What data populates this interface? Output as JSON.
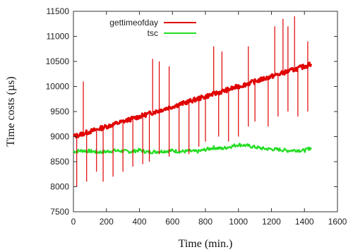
{
  "chart_data": {
    "type": "line",
    "xlabel": "Time (min.)",
    "ylabel": "Time costs (µs)",
    "xlim": [
      0,
      1600
    ],
    "ylim": [
      7500,
      11500
    ],
    "x_ticks": [
      0,
      200,
      400,
      600,
      800,
      1000,
      1200,
      1400,
      1600
    ],
    "y_ticks": [
      7500,
      8000,
      8500,
      9000,
      9500,
      10000,
      10500,
      11000,
      11500
    ],
    "x_tick_labels": [
      "0",
      "200",
      "400",
      "600",
      "800",
      "1000",
      "1200",
      "1400",
      "1600"
    ],
    "y_tick_labels": [
      "7500",
      "8000",
      "8500",
      "9000",
      "9500",
      "10000",
      "10500",
      "11000",
      "11500"
    ],
    "legend_position": "top-right",
    "series": [
      {
        "name": "gettimeofday",
        "color": "#e00000",
        "x": [
          0,
          50,
          100,
          150,
          200,
          250,
          300,
          350,
          400,
          450,
          500,
          550,
          600,
          650,
          700,
          750,
          800,
          850,
          900,
          950,
          1000,
          1050,
          1100,
          1150,
          1200,
          1250,
          1300,
          1350,
          1400,
          1440
        ],
        "values": [
          9000,
          9050,
          9100,
          9150,
          9200,
          9250,
          9300,
          9350,
          9400,
          9450,
          9500,
          9550,
          9600,
          9650,
          9700,
          9750,
          9800,
          9850,
          9900,
          9950,
          10000,
          10050,
          10100,
          10150,
          10200,
          10250,
          10300,
          10350,
          10400,
          10450
        ],
        "spikes_high": [
          [
            60,
            10100
          ],
          [
            480,
            10550
          ],
          [
            520,
            10500
          ],
          [
            580,
            10400
          ],
          [
            850,
            10800
          ],
          [
            900,
            10700
          ],
          [
            1060,
            10800
          ],
          [
            1220,
            11200
          ],
          [
            1270,
            11350
          ],
          [
            1300,
            11200
          ],
          [
            1340,
            11400
          ],
          [
            1420,
            10900
          ]
        ],
        "spikes_low": [
          [
            20,
            8000
          ],
          [
            80,
            8100
          ],
          [
            140,
            8300
          ],
          [
            180,
            8100
          ],
          [
            240,
            8200
          ],
          [
            300,
            8300
          ],
          [
            360,
            8400
          ],
          [
            420,
            8450
          ],
          [
            460,
            8500
          ],
          [
            520,
            8650
          ],
          [
            580,
            8600
          ],
          [
            640,
            8700
          ],
          [
            700,
            8650
          ],
          [
            760,
            8800
          ],
          [
            800,
            8900
          ],
          [
            880,
            9000
          ],
          [
            940,
            8900
          ],
          [
            1000,
            9000
          ],
          [
            1060,
            9200
          ],
          [
            1100,
            9300
          ],
          [
            1180,
            9200
          ],
          [
            1240,
            9400
          ],
          [
            1300,
            9500
          ],
          [
            1360,
            9400
          ],
          [
            1420,
            9500
          ]
        ]
      },
      {
        "name": "tsc",
        "color": "#22dd22",
        "x": [
          0,
          50,
          100,
          150,
          200,
          250,
          300,
          350,
          400,
          450,
          500,
          550,
          600,
          650,
          700,
          750,
          800,
          850,
          900,
          950,
          1000,
          1050,
          1100,
          1150,
          1200,
          1250,
          1300,
          1350,
          1400,
          1440
        ],
        "values": [
          8700,
          8720,
          8710,
          8690,
          8700,
          8720,
          8710,
          8700,
          8730,
          8690,
          8700,
          8710,
          8720,
          8700,
          8710,
          8700,
          8740,
          8780,
          8760,
          8800,
          8840,
          8820,
          8790,
          8760,
          8750,
          8740,
          8720,
          8730,
          8720,
          8780
        ]
      }
    ]
  }
}
